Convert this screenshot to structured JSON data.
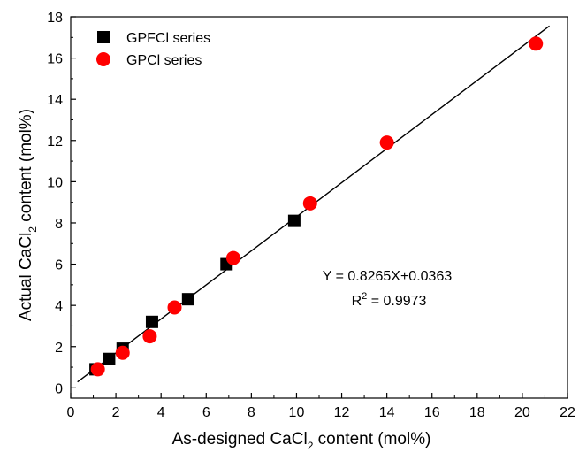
{
  "chart_data": {
    "type": "scatter",
    "xlabel": {
      "pre": "As-designed CaCl",
      "sub": "2",
      "post": " content (mol%)"
    },
    "ylabel": {
      "pre": "Actual CaCl",
      "sub": "2",
      "post": " content (mol%)"
    },
    "xlim": [
      0,
      22
    ],
    "ylim": [
      -0.5,
      18
    ],
    "xticks": [
      0,
      2,
      4,
      6,
      8,
      10,
      12,
      14,
      16,
      18,
      20,
      22
    ],
    "yticks": [
      0,
      2,
      4,
      6,
      8,
      10,
      12,
      14,
      16,
      18
    ],
    "xtick_labels": [
      "0",
      "2",
      "4",
      "6",
      "8",
      "10",
      "12",
      "14",
      "16",
      "18",
      "20",
      "22"
    ],
    "ytick_labels": [
      "0",
      "2",
      "4",
      "6",
      "8",
      "10",
      "12",
      "14",
      "16",
      "18"
    ],
    "series": [
      {
        "name": "GPFCl series",
        "marker": "square",
        "color": "#000000",
        "points": [
          [
            1.1,
            0.9
          ],
          [
            1.7,
            1.4
          ],
          [
            2.3,
            1.9
          ],
          [
            3.6,
            3.2
          ],
          [
            5.2,
            4.3
          ],
          [
            6.9,
            6.0
          ],
          [
            9.9,
            8.1
          ]
        ]
      },
      {
        "name": "GPCl series",
        "marker": "circle",
        "color": "#ff0000",
        "points": [
          [
            1.2,
            0.9
          ],
          [
            2.3,
            1.7
          ],
          [
            3.5,
            2.5
          ],
          [
            4.6,
            3.9
          ],
          [
            7.2,
            6.3
          ],
          [
            10.6,
            8.95
          ],
          [
            14.0,
            11.9
          ],
          [
            20.6,
            16.7
          ]
        ]
      }
    ],
    "fit_line": {
      "slope": 0.8265,
      "intercept": 0.0363,
      "x_range": [
        0.3,
        21.2
      ],
      "color": "#000000"
    },
    "equation_text": "Y = 0.8265X+0.0363",
    "r2_text": {
      "pre": "R",
      "sup": "2",
      "post": " = 0.9973"
    },
    "legend_position": "top-left",
    "grid": false
  }
}
